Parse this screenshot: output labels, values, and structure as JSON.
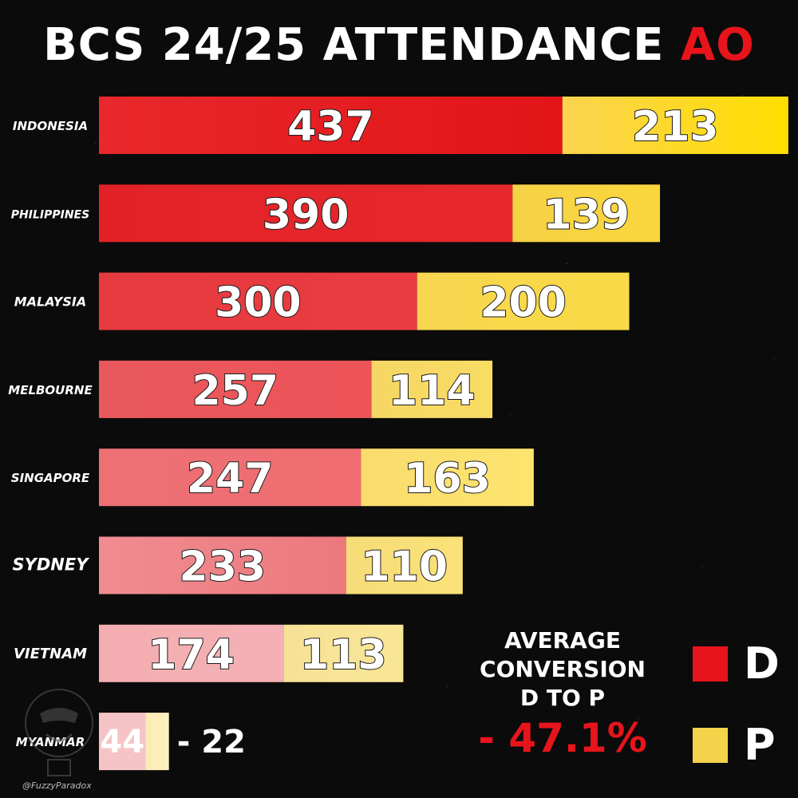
{
  "header": {
    "title_main": "BCS 24/25 ATTENDANCE",
    "title_accent": "AO"
  },
  "chart_data": {
    "type": "bar",
    "orientation": "horizontal",
    "stacked": true,
    "title": "BCS 24/25 ATTENDANCE AO",
    "categories": [
      "INDONESIA",
      "PHILIPPINES",
      "MALAYSIA",
      "MELBOURNE",
      "SINGAPORE",
      "SYDNEY",
      "VIETNAM",
      "MYANMAR"
    ],
    "series": [
      {
        "name": "D",
        "values": [
          437,
          390,
          300,
          257,
          247,
          233,
          174,
          44
        ],
        "color": "#e8141c"
      },
      {
        "name": "P",
        "values": [
          213,
          139,
          200,
          114,
          163,
          110,
          113,
          22
        ],
        "color": "#ffdd00"
      }
    ],
    "legend": "bottom-right",
    "grid": false
  },
  "summary": {
    "lines": [
      "AVERAGE",
      "CONVERSION",
      "D TO P"
    ],
    "value": "- 47.1%"
  },
  "legend": [
    {
      "label": "D",
      "color": "#e8141c"
    },
    {
      "label": "P",
      "color": "#f4d24a"
    }
  ],
  "watermark": {
    "handle": "@FuzzyParadox"
  }
}
